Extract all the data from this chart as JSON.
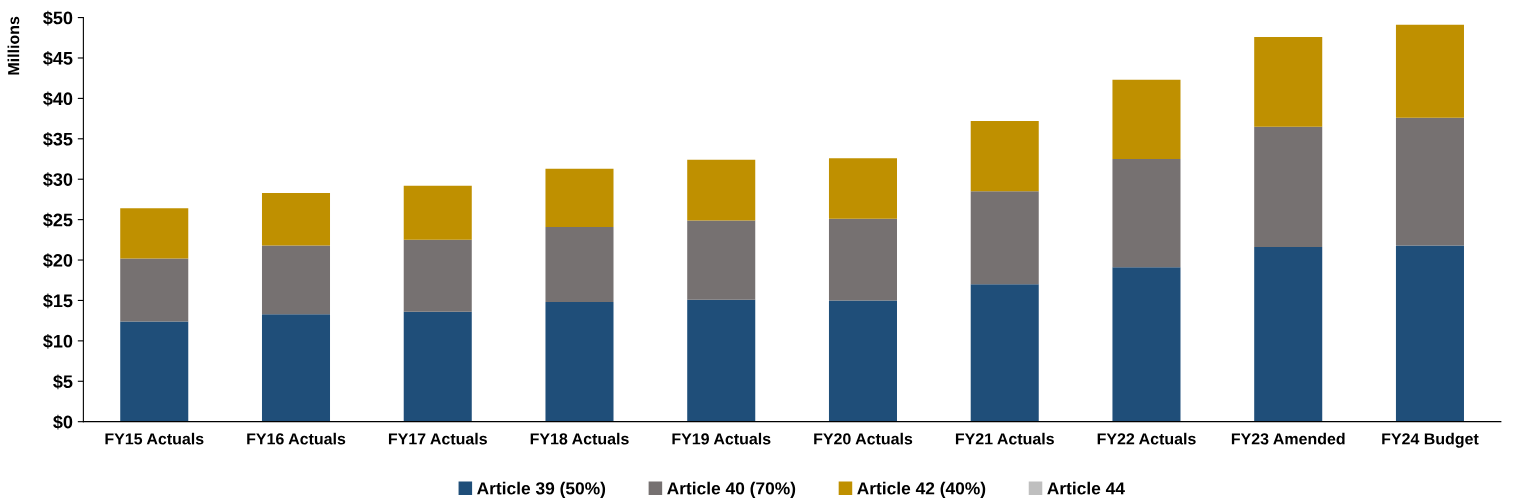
{
  "chart_data": {
    "type": "bar",
    "stacked": true,
    "ylabel": "Millions",
    "categories": [
      "FY15 Actuals",
      "FY16 Actuals",
      "FY17 Actuals",
      "FY18 Actuals",
      "FY19 Actuals",
      "FY20 Actuals",
      "FY21 Actuals",
      "FY22 Actuals",
      "FY23 Amended",
      "FY24 Budget"
    ],
    "series": [
      {
        "name": "Article 39 (50%)",
        "color": "#1f4e79",
        "values": [
          12.4,
          13.3,
          13.6,
          14.8,
          15.1,
          15.0,
          17.0,
          19.1,
          21.6,
          21.8
        ]
      },
      {
        "name": "Article 40 (70%)",
        "color": "#767171",
        "values": [
          7.8,
          8.5,
          8.9,
          9.3,
          9.8,
          10.1,
          11.5,
          13.4,
          14.9,
          15.8
        ]
      },
      {
        "name": "Article 42 (40%)",
        "color": "#bf9000",
        "values": [
          6.2,
          6.5,
          6.7,
          7.2,
          7.5,
          7.5,
          8.7,
          9.8,
          11.1,
          11.5
        ]
      },
      {
        "name": "Article 44",
        "color": "#bfbfbf",
        "values": [
          0,
          0,
          0,
          0,
          0,
          0,
          0,
          0,
          0,
          0
        ]
      }
    ],
    "ylim": [
      0,
      50
    ],
    "yticks": [
      {
        "value": 0,
        "label": "$0"
      },
      {
        "value": 5,
        "label": "$5"
      },
      {
        "value": 10,
        "label": "$10"
      },
      {
        "value": 15,
        "label": "$15"
      },
      {
        "value": 20,
        "label": "$20"
      },
      {
        "value": 25,
        "label": "$25"
      },
      {
        "value": 30,
        "label": "$30"
      },
      {
        "value": 35,
        "label": "$35"
      },
      {
        "value": 40,
        "label": "$40"
      },
      {
        "value": 45,
        "label": "$45"
      },
      {
        "value": 50,
        "label": "$50"
      }
    ],
    "grid": false,
    "legend": "bottom"
  }
}
